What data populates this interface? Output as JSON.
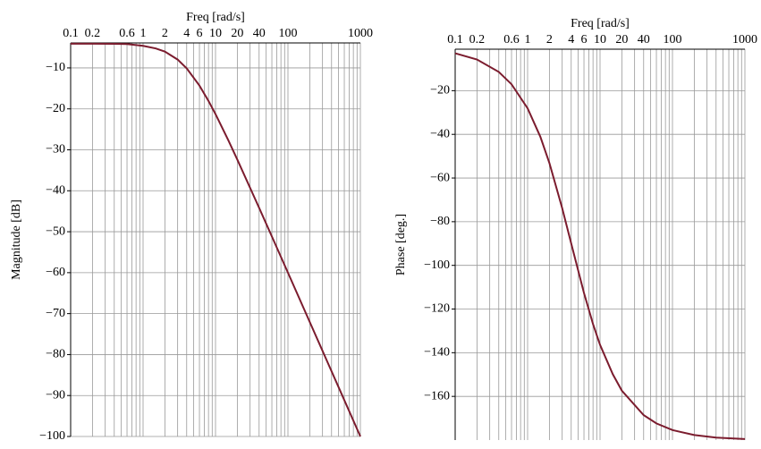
{
  "chart_data": [
    {
      "type": "line",
      "xlabel": "Freq [rad/s]",
      "ylabel": "Magnitude [dB]",
      "xscale": "log",
      "x": [
        0.1,
        0.2,
        0.4,
        0.6,
        1,
        1.5,
        2,
        3,
        4,
        6,
        8,
        10,
        15,
        20,
        40,
        60,
        100,
        200,
        400,
        1000
      ],
      "series": [
        {
          "color": "#7b1c2e",
          "values": [
            -4.09,
            -4.1,
            -4.13,
            -4.18,
            -4.61,
            -5.25,
            -6.02,
            -7.96,
            -10.1,
            -14.32,
            -18.06,
            -21.29,
            -27.64,
            -32.38,
            -44.17,
            -51.16,
            -60.01,
            -72.04,
            -84.08,
            -100
          ]
        }
      ],
      "xlim": [
        0.1,
        1000
      ],
      "xticks": [
        0.1,
        0.2,
        0.6,
        1,
        2,
        4,
        6,
        10,
        20,
        40,
        100,
        1000
      ],
      "xgrid": [
        0.3,
        0.4,
        0.5,
        0.7,
        0.8,
        0.9,
        3,
        5,
        7,
        8,
        9,
        30,
        50,
        60,
        70,
        80,
        90,
        200,
        300,
        400,
        500,
        600,
        700,
        800,
        900
      ],
      "ylim": [
        -100,
        -3.9
      ],
      "yticks": [
        {
          "value": -10,
          "label": "−10"
        },
        {
          "value": -20,
          "label": "−20"
        },
        {
          "value": -30,
          "label": "−30"
        },
        {
          "value": -40,
          "label": "−40"
        },
        {
          "value": -50,
          "label": "−50"
        },
        {
          "value": -60,
          "label": "−60"
        },
        {
          "value": -70,
          "label": "−70"
        },
        {
          "value": -80,
          "label": "−80"
        },
        {
          "value": -90,
          "label": "−90"
        },
        {
          "value": -100,
          "label": "−100"
        }
      ],
      "grid": true
    },
    {
      "type": "line",
      "xlabel": "Freq [rad/s]",
      "ylabel": "Phase [deg.]",
      "xscale": "log",
      "x": [
        0.1,
        0.2,
        0.4,
        0.6,
        1,
        1.5,
        2,
        3,
        4,
        6,
        8,
        10,
        15,
        20,
        40,
        60,
        100,
        200,
        400,
        1000
      ],
      "series": [
        {
          "color": "#7b1c2e",
          "values": [
            -2.86,
            -5.72,
            -11.42,
            -17.06,
            -28.07,
            -41.11,
            -53.13,
            -73.74,
            -90,
            -112.62,
            -126.87,
            -136.4,
            -149.86,
            -157.38,
            -168.58,
            -172.37,
            -175.42,
            -177.71,
            -178.85,
            -179.54
          ]
        }
      ],
      "xlim": [
        0.1,
        1000
      ],
      "xticks": [
        0.1,
        0.2,
        0.6,
        1,
        2,
        4,
        6,
        10,
        20,
        40,
        100,
        1000
      ],
      "xgrid": [
        0.3,
        0.4,
        0.5,
        0.7,
        0.8,
        0.9,
        3,
        5,
        7,
        8,
        9,
        30,
        50,
        60,
        70,
        80,
        90,
        200,
        300,
        400,
        500,
        600,
        700,
        800,
        900
      ],
      "ylim": [
        -180,
        -1
      ],
      "yticks": [
        {
          "value": -20,
          "label": "−20"
        },
        {
          "value": -40,
          "label": "−40"
        },
        {
          "value": -60,
          "label": "−60"
        },
        {
          "value": -80,
          "label": "−80"
        },
        {
          "value": -100,
          "label": "−100"
        },
        {
          "value": -120,
          "label": "−120"
        },
        {
          "value": -140,
          "label": "−140"
        },
        {
          "value": -160,
          "label": "−160"
        }
      ],
      "grid": true
    }
  ]
}
